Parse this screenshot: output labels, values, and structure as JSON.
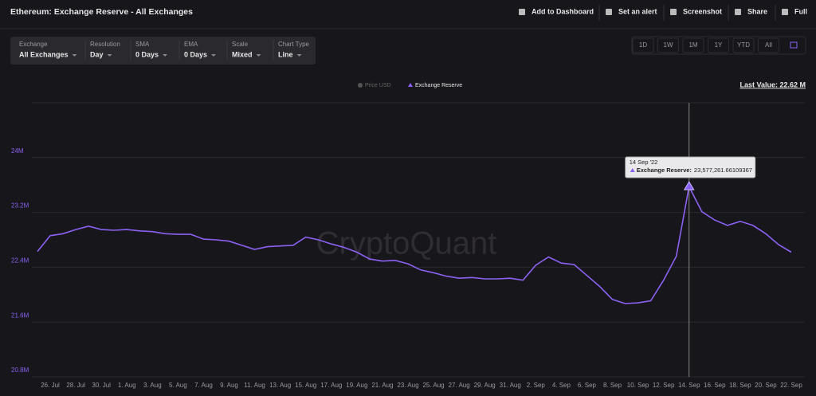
{
  "header": {
    "title": "Ethereum: Exchange Reserve - All Exchanges",
    "actions": [
      "Add to Dashboard",
      "Set an alert",
      "Screenshot",
      "Share",
      "Full"
    ]
  },
  "filters": [
    {
      "label": "Exchange",
      "value": "All Exchanges"
    },
    {
      "label": "Resolution",
      "value": "Day"
    },
    {
      "label": "SMA",
      "value": "0 Days"
    },
    {
      "label": "EMA",
      "value": "0 Days"
    },
    {
      "label": "Scale",
      "value": "Mixed"
    },
    {
      "label": "Chart Type",
      "value": "Line"
    }
  ],
  "ranges": [
    "1D",
    "1W",
    "1M",
    "1Y",
    "YTD",
    "All"
  ],
  "last_value": "Last Value: 22.62 M",
  "watermark": "CryptoQuant",
  "tooltip": {
    "date": "14 Sep '22",
    "series_label": "Exchange Reserve:",
    "value_label": "23,577,261.66109367"
  },
  "chart_data": {
    "type": "line",
    "legend": [
      "Price USD"
    ],
    "categories": [
      null,
      "26. Jul",
      null,
      "28. Jul",
      null,
      "30. Jul",
      null,
      "1. Aug",
      null,
      "3. Aug",
      null,
      "5. Aug",
      null,
      "7. Aug",
      null,
      "9. Aug",
      null,
      "11. Aug",
      null,
      "13. Aug",
      null,
      "15. Aug",
      null,
      "17. Aug",
      null,
      "19. Aug",
      null,
      "21. Aug",
      null,
      "23. Aug",
      null,
      "25. Aug",
      null,
      "27. Aug",
      null,
      "29. Aug",
      null,
      "31. Aug",
      null,
      "2. Sep",
      null,
      "4. Sep",
      null,
      "6. Sep",
      null,
      "8. Sep",
      null,
      "10. Sep",
      null,
      "12. Sep",
      null,
      "14. Sep",
      null,
      "16. Sep",
      null,
      "18. Sep",
      null,
      "20. Sep",
      null,
      "22. Sep"
    ],
    "series": [
      {
        "name": "Exchange Reserve",
        "color": "#8b62f4",
        "values": [
          22630000,
          22860000,
          22890000,
          22950000,
          23000000,
          22950000,
          22940000,
          22950000,
          22930000,
          22920000,
          22890000,
          22880000,
          22880000,
          22810000,
          22800000,
          22780000,
          22720000,
          22660000,
          22700000,
          22710000,
          22720000,
          22840000,
          22800000,
          22740000,
          22690000,
          22620000,
          22520000,
          22490000,
          22500000,
          22450000,
          22360000,
          22320000,
          22270000,
          22240000,
          22250000,
          22230000,
          22230000,
          22240000,
          22210000,
          22430000,
          22550000,
          22460000,
          22440000,
          22280000,
          22120000,
          21930000,
          21870000,
          21880000,
          21910000,
          22210000,
          22560000,
          23577261.66109367,
          23210000,
          23090000,
          23010000,
          23070000,
          23010000,
          22890000,
          22730000,
          22620000
        ]
      }
    ],
    "ylim": [
      20800000,
      24800000
    ],
    "yticks": [
      {
        "value": 20800000,
        "label": "20.8M"
      },
      {
        "value": 21600000,
        "label": "21.6M"
      },
      {
        "value": 22400000,
        "label": "22.4M"
      },
      {
        "value": 23200000,
        "label": "23.2M"
      },
      {
        "value": 24000000,
        "label": "24M"
      }
    ],
    "grid": true
  }
}
